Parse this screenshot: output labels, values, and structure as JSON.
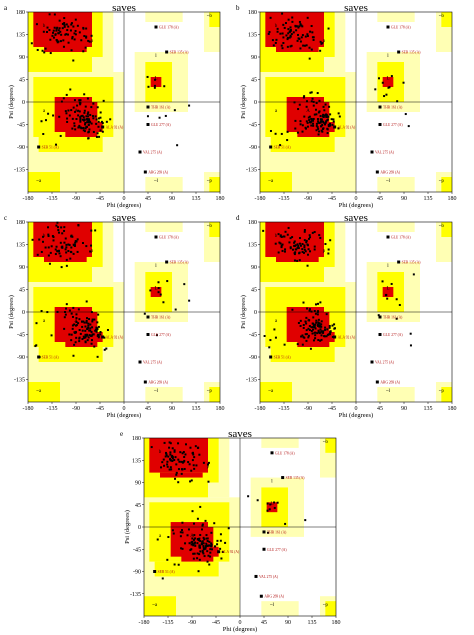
{
  "figure": {
    "panels": [
      {
        "letter": "a",
        "title": "saves"
      },
      {
        "letter": "b",
        "title": "saves"
      },
      {
        "letter": "c",
        "title": "saves"
      },
      {
        "letter": "d",
        "title": "saves"
      },
      {
        "letter": "e",
        "title": "saves"
      }
    ]
  },
  "chart_data": [
    {
      "type": "scatter",
      "title": "saves",
      "xlabel": "Phi (degrees)",
      "ylabel": "Psi (degrees)",
      "xlim": [
        -180,
        180
      ],
      "ylim": [
        -180,
        180
      ],
      "xticks": [
        -180,
        -135,
        -90,
        -45,
        0,
        45,
        90,
        135,
        180
      ],
      "yticks": [
        -135,
        -90,
        -45,
        0,
        45,
        90,
        135,
        180
      ],
      "region_labels": [
        "b",
        "A",
        "a",
        "L",
        "l",
        "p",
        "~b",
        "~a",
        "~l",
        "~p"
      ],
      "colors": {
        "core": "#e00000",
        "allowed": "#ffff00",
        "generous": "#ffffb4",
        "disallowed": "#ffffff",
        "points": "#000000",
        "residue_label": "#b01010"
      },
      "annotations": [
        {
          "label": "GLU 178 (A)",
          "phi": 60,
          "psi": 150
        },
        {
          "label": "SER 135 (A)",
          "phi": 80,
          "psi": 100
        },
        {
          "label": "THR 161 (A)",
          "phi": 45,
          "psi": -10
        },
        {
          "label": "GLU 277 (A)",
          "phi": 45,
          "psi": -45
        },
        {
          "label": "ALA 92 (A)",
          "phi": -40,
          "psi": -50
        },
        {
          "label": "VAL 275 (A)",
          "phi": 30,
          "psi": -100
        },
        {
          "label": "ARG 269 (A)",
          "phi": 40,
          "psi": -140
        },
        {
          "label": "SER 51 (A)",
          "phi": -160,
          "psi": -90
        }
      ],
      "points": []
    },
    {
      "type": "scatter",
      "title": "saves",
      "xlabel": "Phi (degrees)",
      "ylabel": "Psi (degrees)",
      "xlim": [
        -180,
        180
      ],
      "ylim": [
        -180,
        180
      ],
      "xticks": [
        -180,
        -135,
        -90,
        -45,
        0,
        45,
        90,
        135,
        180
      ],
      "yticks": [
        -135,
        -90,
        -45,
        0,
        45,
        90,
        135,
        180
      ],
      "region_labels": [
        "b",
        "A",
        "a",
        "L",
        "l",
        "p",
        "~b",
        "~a",
        "~l",
        "~p"
      ],
      "annotations": [
        {
          "label": "GLU 178 (A)",
          "phi": 60,
          "psi": 150
        },
        {
          "label": "SER 135 (A)",
          "phi": 80,
          "psi": 100
        },
        {
          "label": "THR 161 (A)",
          "phi": 45,
          "psi": -10
        },
        {
          "label": "GLU 277 (A)",
          "phi": 45,
          "psi": -45
        },
        {
          "label": "ALA 92 (A)",
          "phi": -40,
          "psi": -50
        },
        {
          "label": "VAL 275 (A)",
          "phi": 30,
          "psi": -100
        },
        {
          "label": "ARG 269 (A)",
          "phi": 40,
          "psi": -140
        },
        {
          "label": "SER 51 (A)",
          "phi": -160,
          "psi": -90
        }
      ],
      "points": []
    },
    {
      "type": "scatter",
      "title": "saves",
      "xlabel": "Phi (degrees)",
      "ylabel": "Psi (degrees)",
      "xlim": [
        -180,
        180
      ],
      "ylim": [
        -180,
        180
      ],
      "xticks": [
        -180,
        -135,
        -90,
        -45,
        0,
        45,
        90,
        135,
        180
      ],
      "yticks": [
        -135,
        -90,
        -45,
        0,
        45,
        90,
        135,
        180
      ],
      "region_labels": [
        "b",
        "A",
        "a",
        "L",
        "l",
        "p",
        "~b",
        "~a",
        "~l",
        "~p"
      ],
      "annotations": [
        {
          "label": "GLU 178 (A)",
          "phi": 60,
          "psi": 150
        },
        {
          "label": "SER 135 (A)",
          "phi": 80,
          "psi": 100
        },
        {
          "label": "THR 161 (A)",
          "phi": 45,
          "psi": -10
        },
        {
          "label": "GLU 277 (A)",
          "phi": 45,
          "psi": -45
        },
        {
          "label": "ALA 92 (A)",
          "phi": -40,
          "psi": -50
        },
        {
          "label": "VAL 275 (A)",
          "phi": 30,
          "psi": -100
        },
        {
          "label": "ARG 269 (A)",
          "phi": 40,
          "psi": -140
        },
        {
          "label": "SER 51 (A)",
          "phi": -160,
          "psi": -90
        }
      ],
      "points": []
    },
    {
      "type": "scatter",
      "title": "saves",
      "xlabel": "Phi (degrees)",
      "ylabel": "Psi (degrees)",
      "xlim": [
        -180,
        180
      ],
      "ylim": [
        -180,
        180
      ],
      "xticks": [
        -180,
        -135,
        -90,
        -45,
        0,
        45,
        90,
        135,
        180
      ],
      "yticks": [
        -135,
        -90,
        -45,
        0,
        45,
        90,
        135,
        180
      ],
      "region_labels": [
        "b",
        "A",
        "a",
        "L",
        "l",
        "p",
        "~b",
        "~a",
        "~l",
        "~p"
      ],
      "annotations": [
        {
          "label": "GLU 178 (A)",
          "phi": 60,
          "psi": 150
        },
        {
          "label": "SER 135 (A)",
          "phi": 80,
          "psi": 100
        },
        {
          "label": "THR 161 (A)",
          "phi": 45,
          "psi": -10
        },
        {
          "label": "GLU 277 (A)",
          "phi": 45,
          "psi": -45
        },
        {
          "label": "ALA 92 (A)",
          "phi": -40,
          "psi": -50
        },
        {
          "label": "VAL 275 (A)",
          "phi": 30,
          "psi": -100
        },
        {
          "label": "ARG 269 (A)",
          "phi": 40,
          "psi": -140
        },
        {
          "label": "SER 51 (A)",
          "phi": -160,
          "psi": -90
        }
      ],
      "points": []
    },
    {
      "type": "scatter",
      "title": "saves",
      "xlabel": "Phi (degrees)",
      "ylabel": "Psi (degrees)",
      "xlim": [
        -180,
        180
      ],
      "ylim": [
        -180,
        180
      ],
      "xticks": [
        -180,
        -135,
        -90,
        -45,
        0,
        45,
        90,
        135,
        180
      ],
      "yticks": [
        -135,
        -90,
        -45,
        0,
        45,
        90,
        135,
        180
      ],
      "region_labels": [
        "b",
        "A",
        "a",
        "L",
        "l",
        "p",
        "~b",
        "~a",
        "~l",
        "~p"
      ],
      "annotations": [
        {
          "label": "GLU 178 (A)",
          "phi": 60,
          "psi": 150
        },
        {
          "label": "SER 135 (A)",
          "phi": 80,
          "psi": 100
        },
        {
          "label": "THR 161 (A)",
          "phi": 45,
          "psi": -10
        },
        {
          "label": "GLU 277 (A)",
          "phi": 45,
          "psi": -45
        },
        {
          "label": "ALA 92 (A)",
          "phi": -40,
          "psi": -50
        },
        {
          "label": "VAL 275 (A)",
          "phi": 30,
          "psi": -100
        },
        {
          "label": "ARG 269 (A)",
          "phi": 40,
          "psi": -140
        },
        {
          "label": "SER 51 (A)",
          "phi": -160,
          "psi": -90
        }
      ],
      "points": []
    }
  ]
}
